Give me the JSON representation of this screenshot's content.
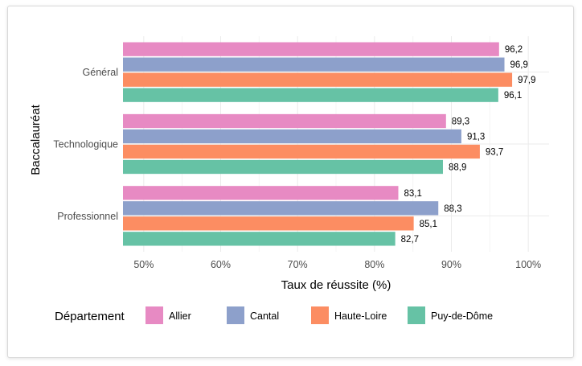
{
  "chart_data": {
    "type": "bar",
    "orientation": "horizontal",
    "categories": [
      "Général",
      "Technologique",
      "Professionnel"
    ],
    "series": [
      {
        "name": "Allier",
        "values": [
          96.2,
          89.3,
          83.1
        ],
        "labels": [
          "96,2",
          "89,3",
          "83,1"
        ],
        "color": "#e78ac3"
      },
      {
        "name": "Cantal",
        "values": [
          96.9,
          91.3,
          88.3
        ],
        "labels": [
          "96,9",
          "91,3",
          "88,3"
        ],
        "color": "#8da0cb"
      },
      {
        "name": "Haute-Loire",
        "values": [
          97.9,
          93.7,
          85.1
        ],
        "labels": [
          "97,9",
          "93,7",
          "85,1"
        ],
        "color": "#fc8d62"
      },
      {
        "name": "Puy-de-Dôme",
        "values": [
          96.1,
          88.9,
          82.7
        ],
        "labels": [
          "96,1",
          "88,9",
          "82,7"
        ],
        "color": "#66c2a5"
      }
    ],
    "xlabel": "Taux de réussite (%)",
    "ylabel": "Baccalauréat",
    "xlim": [
      47.3,
      102.7
    ],
    "x_ticks": [
      50,
      60,
      70,
      80,
      90,
      100
    ],
    "x_tick_labels": [
      "50%",
      "60%",
      "70%",
      "80%",
      "90%",
      "100%"
    ],
    "grid": true,
    "legend": {
      "title": "Département",
      "position": "bottom"
    }
  }
}
